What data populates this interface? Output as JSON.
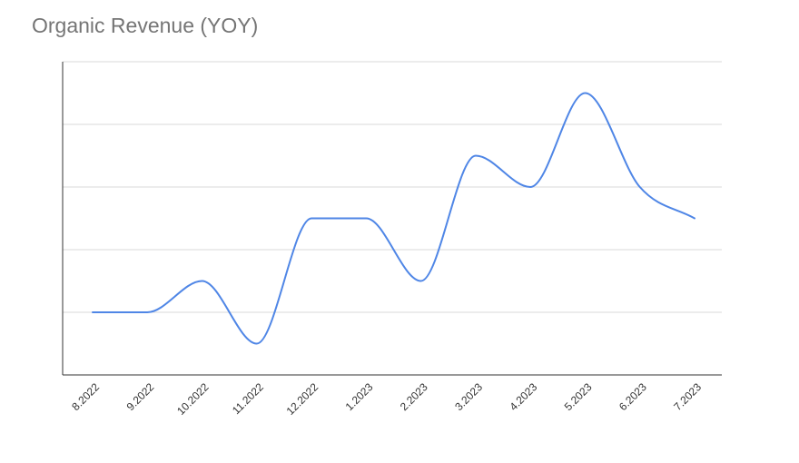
{
  "chart_data": {
    "type": "line",
    "title": "Organic Revenue (YOY)",
    "categories": [
      "8.2022",
      "9.2022",
      "10.2022",
      "11.2022",
      "12.2022",
      "1.2023",
      "2.2023",
      "3.2023",
      "4.2023",
      "5.2023",
      "6.2023",
      "7.2023"
    ],
    "series": [
      {
        "values": [
          1.0,
          1.0,
          1.5,
          0.5,
          2.5,
          2.5,
          1.5,
          3.5,
          3.0,
          4.5,
          3.0,
          2.5
        ],
        "color": "#4f86e6"
      }
    ],
    "ylim": [
      0,
      5
    ],
    "y_gridlines": [
      1,
      2,
      3,
      4,
      5
    ],
    "y_tick_labels_visible": false,
    "grid": true,
    "curve": "smooth",
    "x_label_rotation": -45
  }
}
